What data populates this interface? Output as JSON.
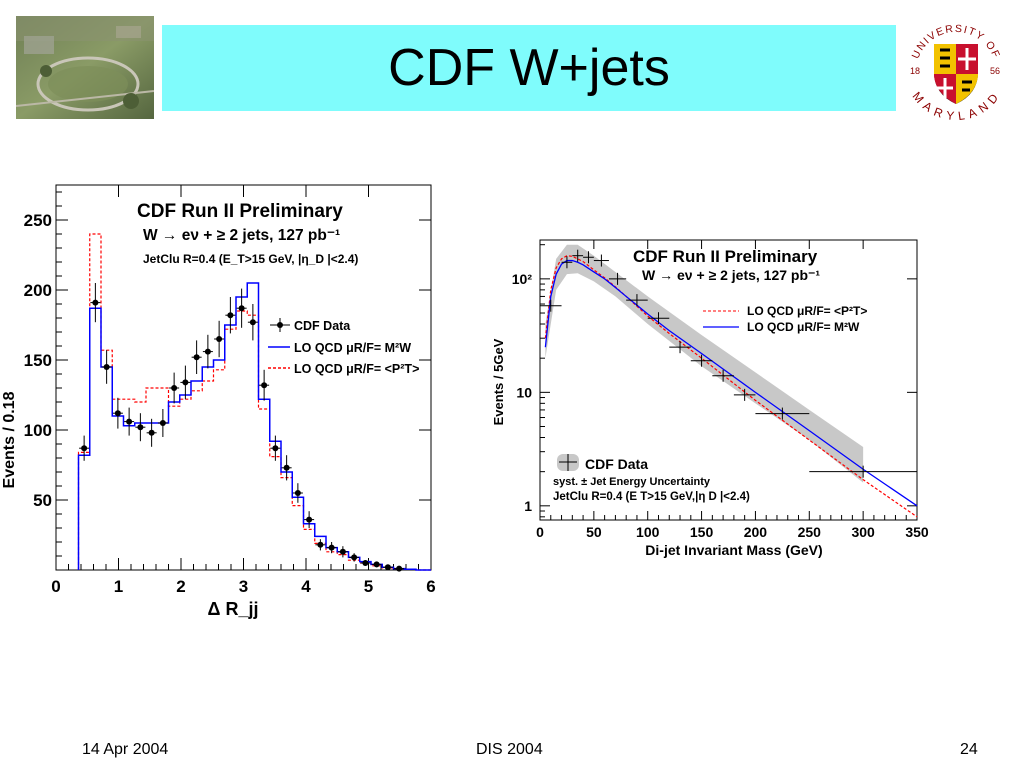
{
  "slide": {
    "title": "CDF W+jets",
    "footer_date": "14 Apr 2004",
    "footer_center": "DIS 2004",
    "page_number": "24"
  },
  "seal": {
    "top_text": "UNIVERSITY OF",
    "bottom_text": "MARYLAND",
    "year_left": "18",
    "year_right": "56"
  },
  "chart_data": [
    {
      "type": "histogram",
      "title": "CDF Run II Preliminary",
      "subtitle": "W → eν + ≥ 2 jets, 127 pb⁻¹",
      "note": "JetClu R=0.4 (E_T>15 GeV, |η_D |<2.4)",
      "xlabel": "Δ R_jj",
      "ylabel": "Events / 0.18",
      "xlim": [
        0,
        6
      ],
      "ylim": [
        0,
        275
      ],
      "xticks": [
        "0",
        "1",
        "2",
        "3",
        "4",
        "5",
        "6"
      ],
      "yticks": [
        "50",
        "100",
        "150",
        "200",
        "250"
      ],
      "legend_position": "right",
      "legend": [
        "CDF Data",
        "LO QCD μR/F= M²W",
        "LO QCD μR/F= <P²T>"
      ],
      "bin_edges": [
        0.36,
        0.54,
        0.72,
        0.9,
        1.08,
        1.26,
        1.44,
        1.62,
        1.8,
        1.98,
        2.16,
        2.34,
        2.52,
        2.7,
        2.88,
        3.06,
        3.24,
        3.42,
        3.6,
        3.78,
        3.96,
        4.14,
        4.32,
        4.5,
        4.68,
        4.86,
        5.04,
        5.22,
        5.4,
        5.58,
        5.76
      ],
      "series": [
        {
          "name": "CDF Data",
          "color": "#000000",
          "x": [
            0.45,
            0.63,
            0.81,
            0.99,
            1.17,
            1.35,
            1.53,
            1.71,
            1.89,
            2.07,
            2.25,
            2.43,
            2.61,
            2.79,
            2.97,
            3.15,
            3.33,
            3.51,
            3.69,
            3.87,
            4.05,
            4.23,
            4.41,
            4.59,
            4.77,
            4.95,
            5.13,
            5.31,
            5.49
          ],
          "y": [
            87,
            191,
            145,
            112,
            106,
            102,
            98,
            105,
            130,
            134,
            152,
            156,
            165,
            182,
            187,
            177,
            132,
            87,
            73,
            55,
            36,
            18,
            16,
            13,
            9,
            5,
            4,
            2,
            1
          ],
          "yerr": [
            9,
            14,
            12,
            11,
            10,
            10,
            10,
            10,
            11,
            12,
            12,
            12,
            13,
            13,
            14,
            13,
            11,
            9,
            9,
            7,
            6,
            4,
            4,
            4,
            3,
            2,
            2,
            1.5,
            1
          ]
        },
        {
          "name": "LO QCD μR/F= M²W",
          "color": "#0000ff",
          "y": [
            82,
            187,
            145,
            110,
            103,
            105,
            105,
            105,
            120,
            125,
            135,
            145,
            150,
            175,
            195,
            205,
            122,
            92,
            70,
            52,
            33,
            24,
            16,
            13,
            9,
            6,
            4,
            2,
            1,
            0.5
          ]
        },
        {
          "name": "LO QCD μR/F= <P²T>",
          "color": "#ff0000",
          "y": [
            84,
            240,
            157,
            122,
            122,
            120,
            130,
            130,
            117,
            122,
            128,
            135,
            143,
            172,
            185,
            182,
            115,
            81,
            66,
            46,
            29,
            19,
            13,
            11,
            7,
            5,
            3,
            1.5,
            0.8,
            0.4
          ]
        }
      ]
    },
    {
      "type": "line",
      "title": "CDF Run II Preliminary",
      "subtitle": "W → eν + ≥ 2 jets, 127 pb⁻¹",
      "note": "JetClu R=0.4 (E T>15 GeV,|η D |<2.4)",
      "xlabel": "Di-jet Invariant Mass (GeV)",
      "ylabel": "Events / 5GeV",
      "xlim": [
        0,
        350
      ],
      "ylim": [
        0.75,
        220
      ],
      "yscale": "log",
      "xticks": [
        "0",
        "50",
        "100",
        "150",
        "200",
        "250",
        "300",
        "350"
      ],
      "yticks": [
        "1",
        "10",
        "10²"
      ],
      "legend_position": "top-right and bottom-left",
      "legend": [
        "LO QCD μR/F= M²W",
        "LO QCD μR/F= <P²T>",
        "CDF Data",
        "syst. ± Jet Energy Uncertainty"
      ],
      "series": [
        {
          "name": "CDF Data",
          "color": "#000000",
          "x": [
            10,
            25,
            35,
            45,
            57,
            72,
            90,
            110,
            130,
            150,
            170,
            190,
            225,
            300
          ],
          "y": [
            58,
            140,
            160,
            155,
            145,
            100,
            65,
            45,
            25,
            19,
            14,
            9.5,
            6.5,
            2
          ],
          "xerr": [
            10,
            5,
            5,
            5,
            7,
            8,
            10,
            10,
            10,
            10,
            10,
            10,
            25,
            50
          ]
        },
        {
          "name": "LO QCD μR/F= <P²T>",
          "color": "#ff0000",
          "x": [
            5,
            10,
            15,
            20,
            25,
            30,
            35,
            40,
            50,
            60,
            70,
            80,
            100,
            120,
            150,
            200,
            250,
            300,
            350
          ],
          "y": [
            30,
            80,
            125,
            150,
            160,
            158,
            150,
            142,
            120,
            102,
            85,
            70,
            47,
            33,
            20,
            8.5,
            3.8,
            1.7,
            0.8
          ]
        },
        {
          "name": "LO QCD μR/F= M²W",
          "color": "#0000ff",
          "x": [
            5,
            10,
            15,
            20,
            25,
            30,
            35,
            40,
            50,
            60,
            70,
            80,
            100,
            120,
            150,
            200,
            250,
            300,
            350
          ],
          "y": [
            25,
            70,
            110,
            135,
            145,
            145,
            140,
            133,
            115,
            100,
            84,
            70,
            49,
            35,
            22,
            10,
            4.6,
            2.1,
            1
          ]
        }
      ],
      "band": {
        "name": "syst. ± Jet Energy Uncertainty",
        "color": "#c8c8c8",
        "x": [
          5,
          15,
          25,
          35,
          50,
          70,
          100,
          150,
          200,
          250,
          300
        ],
        "lower": [
          20,
          80,
          110,
          112,
          95,
          70,
          40,
          17,
          8,
          3.8,
          1.6
        ],
        "upper": [
          40,
          150,
          200,
          200,
          160,
          115,
          70,
          32,
          15,
          7,
          3.3
        ]
      }
    }
  ]
}
